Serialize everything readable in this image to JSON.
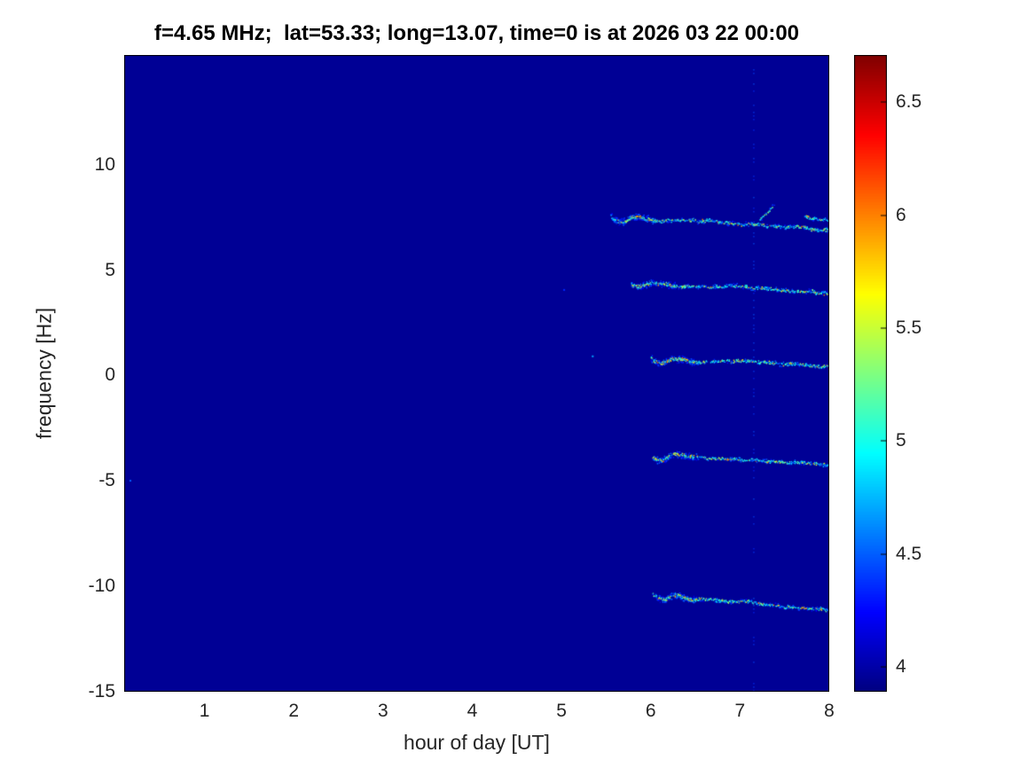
{
  "chart_data": {
    "type": "heatmap",
    "title": "f=4.65 MHz;  lat=53.33; long=13.07, time=0 is at 2026 03 22 00:00",
    "xlabel": "hour of day [UT]",
    "ylabel": "frequency [Hz]",
    "xlim": [
      0.1,
      8.0
    ],
    "ylim": [
      -15,
      15.2
    ],
    "xticks": [
      1,
      2,
      3,
      4,
      5,
      6,
      7,
      8
    ],
    "yticks": [
      -15,
      -10,
      -5,
      0,
      5,
      10
    ],
    "grid": false,
    "colors": {
      "figure_bg": "#ffffff",
      "axes_text": "#262626",
      "title_color": "#000000",
      "axis_line": "#000000"
    },
    "colorbar": {
      "min": 3.89,
      "max": 6.71,
      "ticks": [
        4,
        4.5,
        5,
        5.5,
        6,
        6.5
      ],
      "colormap": "jet",
      "position": "right"
    },
    "background_value": 3.95,
    "traces": [
      {
        "x0": 5.55,
        "x1": 8.0,
        "y0": 7.55,
        "y1": 7.0,
        "knot": true,
        "bright": 0.9
      },
      {
        "x0": 7.22,
        "x1": 7.38,
        "y0": 7.4,
        "y1": 8.15,
        "knot": false,
        "bright": 0.5
      },
      {
        "x0": 7.72,
        "x1": 7.98,
        "y0": 7.6,
        "y1": 7.35,
        "knot": false,
        "bright": 0.5
      },
      {
        "x0": 5.78,
        "x1": 8.0,
        "y0": 4.35,
        "y1": 4.0,
        "knot": true,
        "bright": 0.8
      },
      {
        "x0": 6.0,
        "x1": 8.0,
        "y0": 0.85,
        "y1": 0.35,
        "knot": true,
        "bright": 1.0
      },
      {
        "x0": 6.02,
        "x1": 8.0,
        "y0": -3.85,
        "y1": -4.3,
        "knot": true,
        "bright": 1.0
      },
      {
        "x0": 6.02,
        "x1": 8.0,
        "y0": -10.35,
        "y1": -11.0,
        "knot": true,
        "bright": 1.1
      }
    ],
    "vertical_artifact": {
      "x": 7.15,
      "value": 4.35
    },
    "specks": [
      {
        "x": 5.34,
        "y": 0.95,
        "v": 4.7
      },
      {
        "x": 0.16,
        "y": -4.95,
        "v": 4.5
      },
      {
        "x": 5.02,
        "y": 4.1,
        "v": 4.35
      }
    ]
  }
}
